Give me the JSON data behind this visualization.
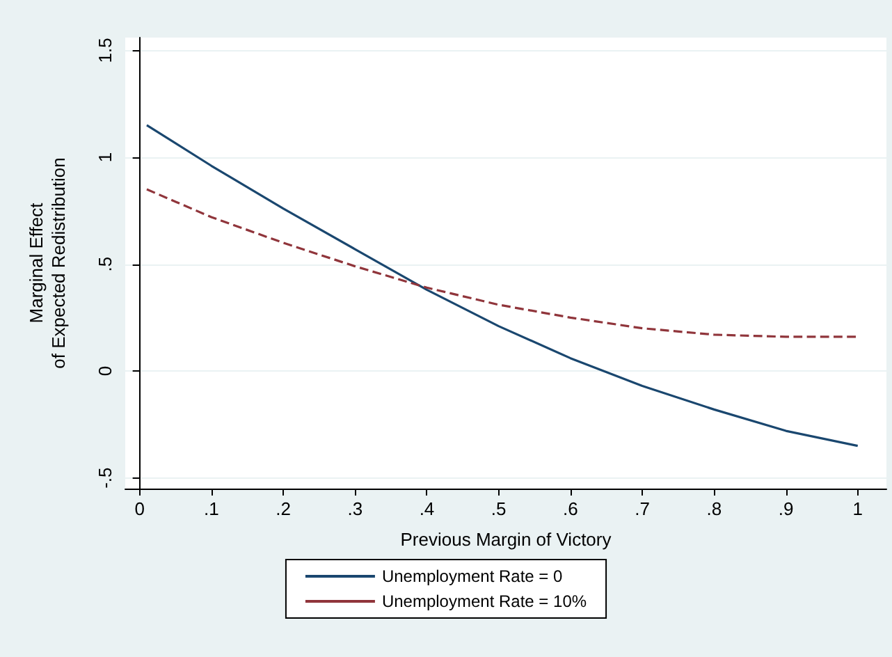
{
  "chart_data": {
    "type": "line",
    "xlabel": "Previous Margin of Victory",
    "ylabel": "Marginal Effect\nof Expected Redistribution",
    "x": [
      0.01,
      0.1,
      0.2,
      0.3,
      0.4,
      0.5,
      0.6,
      0.7,
      0.8,
      0.9,
      1.0
    ],
    "series": [
      {
        "name": "Unemployment Rate = 0",
        "color": "#1a476f",
        "line_style": "solid",
        "values": [
          1.15,
          0.96,
          0.76,
          0.57,
          0.38,
          0.21,
          0.06,
          -0.07,
          -0.18,
          -0.28,
          -0.35
        ]
      },
      {
        "name": "Unemployment Rate = 10%",
        "color": "#90353b",
        "line_style": "dashed",
        "values": [
          0.85,
          0.72,
          0.6,
          0.49,
          0.39,
          0.31,
          0.25,
          0.2,
          0.17,
          0.16,
          0.16
        ]
      }
    ],
    "xlim": [
      -0.02,
      1.04
    ],
    "xticks": [
      {
        "value": 0,
        "label": "0"
      },
      {
        "value": 0.1,
        "label": ".1"
      },
      {
        "value": 0.2,
        "label": ".2"
      },
      {
        "value": 0.3,
        "label": ".3"
      },
      {
        "value": 0.4,
        "label": ".4"
      },
      {
        "value": 0.5,
        "label": ".5"
      },
      {
        "value": 0.6,
        "label": ".6"
      },
      {
        "value": 0.7,
        "label": ".7"
      },
      {
        "value": 0.8,
        "label": ".8"
      },
      {
        "value": 0.9,
        "label": ".9"
      },
      {
        "value": 1,
        "label": "1"
      }
    ],
    "ylim": [
      -0.55,
      1.56
    ],
    "yticks": [
      {
        "value": -0.5,
        "label": "-.5"
      },
      {
        "value": 0,
        "label": "0"
      },
      {
        "value": 0.5,
        "label": ".5"
      },
      {
        "value": 1,
        "label": "1"
      },
      {
        "value": 1.5,
        "label": "1.5"
      }
    ],
    "grid": "y",
    "legend": "bottom",
    "marker": "none"
  }
}
